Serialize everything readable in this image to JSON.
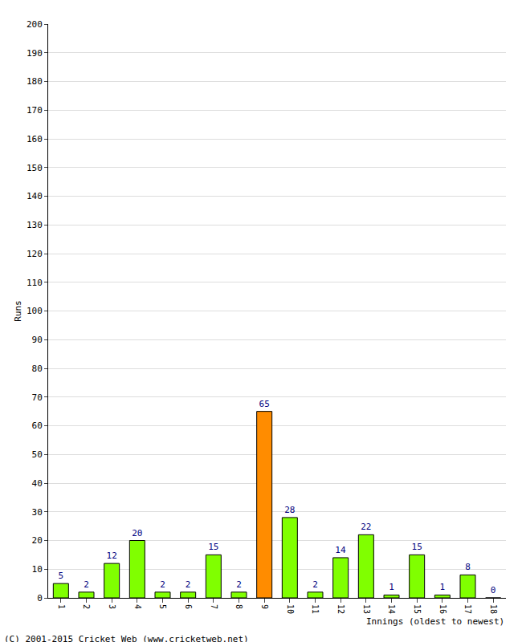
{
  "chart_data": {
    "type": "bar",
    "categories": [
      "1",
      "2",
      "3",
      "4",
      "5",
      "6",
      "7",
      "8",
      "9",
      "10",
      "11",
      "12",
      "13",
      "14",
      "15",
      "16",
      "17",
      "18"
    ],
    "values": [
      5,
      2,
      12,
      20,
      2,
      2,
      15,
      2,
      65,
      28,
      2,
      14,
      22,
      1,
      15,
      1,
      8,
      0
    ],
    "colors": [
      "#80ff00",
      "#80ff00",
      "#80ff00",
      "#80ff00",
      "#80ff00",
      "#80ff00",
      "#80ff00",
      "#80ff00",
      "#ff8c00",
      "#80ff00",
      "#80ff00",
      "#80ff00",
      "#80ff00",
      "#80ff00",
      "#80ff00",
      "#80ff00",
      "#80ff00",
      "#80ff00"
    ],
    "xlabel": "Innings (oldest to newest)",
    "ylabel": "Runs",
    "ylim": [
      0,
      200
    ],
    "yticks": [
      0,
      10,
      20,
      30,
      40,
      50,
      60,
      70,
      80,
      90,
      100,
      110,
      120,
      130,
      140,
      150,
      160,
      170,
      180,
      190,
      200
    ],
    "grid": true,
    "data_labels": true,
    "annotations": [
      "(C) 2001-2015 Cricket Web (www.cricketweb.net)"
    ]
  }
}
